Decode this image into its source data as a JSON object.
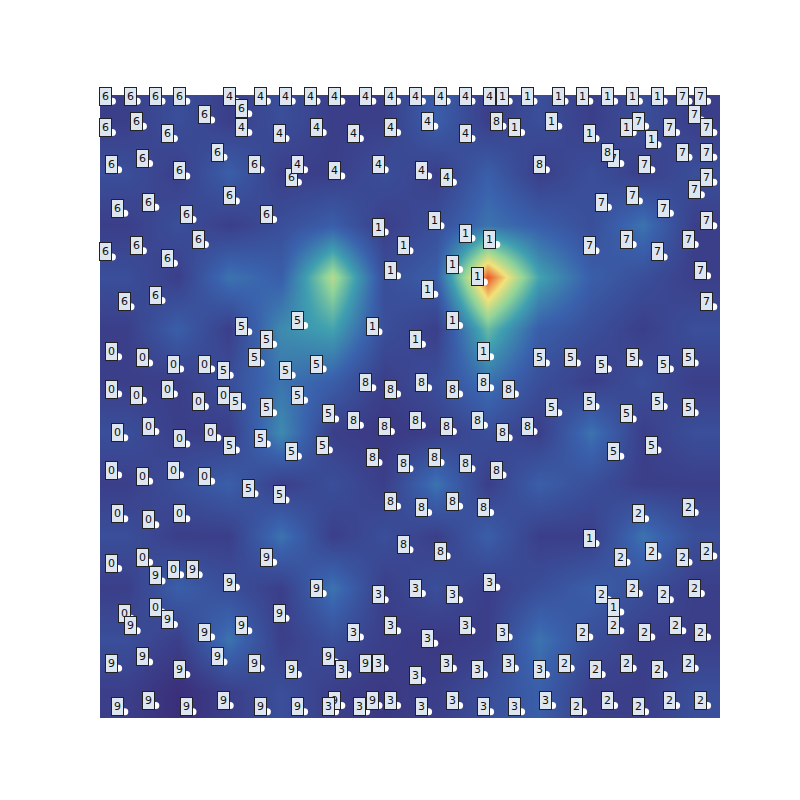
{
  "chart_data": {
    "type": "scatter",
    "tick_labels": false,
    "grid": false,
    "xlim": [
      0,
      100
    ],
    "ylim": [
      0,
      100
    ],
    "heatmap": {
      "z": [
        [
          0.3,
          0.25,
          0.3,
          0.35,
          0.3,
          0.28,
          0.3,
          0.35,
          0.4,
          0.3,
          0.3,
          0.35
        ],
        [
          0.35,
          0.3,
          0.45,
          0.3,
          0.35,
          0.3,
          0.28,
          0.3,
          0.45,
          0.35,
          0.3,
          0.3
        ],
        [
          0.3,
          0.4,
          0.35,
          0.3,
          0.45,
          0.3,
          0.35,
          0.3,
          0.35,
          0.4,
          0.35,
          0.3
        ],
        [
          0.35,
          0.3,
          0.3,
          0.45,
          0.3,
          0.35,
          0.3,
          0.4,
          0.3,
          0.3,
          0.45,
          0.35
        ],
        [
          0.3,
          0.35,
          0.4,
          0.3,
          0.35,
          0.3,
          0.45,
          0.3,
          0.4,
          0.35,
          0.3,
          0.3
        ],
        [
          0.35,
          0.3,
          0.3,
          0.5,
          0.3,
          0.28,
          0.3,
          0.35,
          0.3,
          0.45,
          0.3,
          0.35
        ],
        [
          0.3,
          0.3,
          0.35,
          0.45,
          0.4,
          0.3,
          0.35,
          0.45,
          0.35,
          0.3,
          0.35,
          0.3
        ],
        [
          0.3,
          0.4,
          0.3,
          0.5,
          0.55,
          0.35,
          0.3,
          0.6,
          0.4,
          0.35,
          0.3,
          0.35
        ],
        [
          0.35,
          0.3,
          0.45,
          0.4,
          0.7,
          0.35,
          0.4,
          0.9,
          0.55,
          0.4,
          0.35,
          0.3
        ],
        [
          0.3,
          0.35,
          0.3,
          0.35,
          0.4,
          0.3,
          0.35,
          0.45,
          0.4,
          0.35,
          0.45,
          0.3
        ],
        [
          0.35,
          0.3,
          0.4,
          0.3,
          0.3,
          0.35,
          0.3,
          0.4,
          0.3,
          0.35,
          0.3,
          0.35
        ],
        [
          0.3,
          0.35,
          0.3,
          0.35,
          0.3,
          0.3,
          0.4,
          0.3,
          0.35,
          0.3,
          0.35,
          0.3
        ]
      ]
    },
    "points": [
      {
        "label": "6",
        "x": [
          2,
          6,
          10,
          14,
          2,
          7,
          12,
          18,
          24,
          3,
          8,
          14,
          20,
          26,
          32,
          4,
          9,
          15,
          22,
          28,
          2,
          7,
          12,
          17,
          5,
          10
        ],
        "y": [
          99,
          99,
          99,
          99,
          94,
          95,
          93,
          96,
          97,
          88,
          89,
          87,
          90,
          88,
          86,
          81,
          82,
          80,
          83,
          80,
          74,
          75,
          73,
          76,
          66,
          67
        ]
      },
      {
        "label": "4",
        "x": [
          22,
          27,
          31,
          35,
          39,
          44,
          48,
          52,
          56,
          60,
          64,
          24,
          30,
          36,
          42,
          48,
          54,
          60,
          33,
          39,
          46,
          53,
          57
        ],
        "y": [
          99,
          99,
          99,
          99,
          99,
          99,
          99,
          99,
          99,
          99,
          99,
          94,
          93,
          94,
          93,
          94,
          95,
          93,
          88,
          87,
          88,
          87,
          86
        ]
      },
      {
        "label": "1",
        "x": [
          66,
          70,
          75,
          79,
          83,
          87,
          91,
          68,
          74,
          80,
          86,
          90,
          46,
          50,
          55,
          60,
          64,
          48,
          54,
          58,
          62,
          45,
          52,
          58,
          63,
          80,
          84
        ],
        "y": [
          99,
          99,
          99,
          99,
          99,
          99,
          99,
          94,
          95,
          93,
          94,
          92,
          78,
          75,
          79,
          77,
          76,
          71,
          68,
          72,
          70,
          62,
          60,
          63,
          58,
          28,
          17
        ]
      },
      {
        "label": "7",
        "x": [
          95,
          98,
          99,
          88,
          93,
          97,
          99,
          84,
          89,
          95,
          99,
          82,
          87,
          92,
          97,
          99,
          80,
          86,
          91,
          96,
          98,
          99
        ],
        "y": [
          99,
          99,
          94,
          95,
          94,
          96,
          90,
          89,
          88,
          90,
          86,
          82,
          83,
          81,
          84,
          79,
          75,
          76,
          74,
          76,
          71,
          66
        ]
      },
      {
        "label": "8",
        "x": [
          65,
          72,
          83,
          44,
          48,
          53,
          58,
          63,
          67,
          42,
          47,
          52,
          57,
          62,
          66,
          70,
          45,
          50,
          55,
          60,
          65,
          48,
          53,
          58,
          63,
          50,
          56
        ],
        "y": [
          95,
          88,
          90,
          53,
          52,
          53,
          52,
          53,
          52,
          47,
          46,
          47,
          46,
          47,
          45,
          46,
          41,
          40,
          41,
          40,
          39,
          34,
          33,
          34,
          33,
          27,
          26
        ]
      },
      {
        "label": "5",
        "x": [
          24,
          28,
          33,
          21,
          26,
          31,
          36,
          23,
          28,
          33,
          38,
          22,
          27,
          32,
          37,
          25,
          30,
          72,
          77,
          82,
          87,
          92,
          96,
          74,
          80,
          86,
          91,
          96,
          84,
          90
        ],
        "y": [
          62,
          60,
          63,
          55,
          57,
          55,
          56,
          50,
          49,
          51,
          48,
          43,
          44,
          42,
          43,
          36,
          35,
          57,
          57,
          56,
          57,
          56,
          57,
          49,
          50,
          48,
          50,
          49,
          42,
          43
        ]
      },
      {
        "label": "0",
        "x": [
          3,
          8,
          13,
          18,
          3,
          7,
          12,
          17,
          21,
          4,
          9,
          14,
          19,
          3,
          8,
          13,
          18,
          4,
          9,
          14,
          3,
          8,
          13,
          5,
          10
        ],
        "y": [
          58,
          57,
          56,
          56,
          52,
          51,
          52,
          50,
          51,
          45,
          46,
          44,
          45,
          39,
          38,
          39,
          38,
          32,
          31,
          32,
          24,
          25,
          23,
          16,
          17
        ]
      },
      {
        "label": "9",
        "x": [
          4,
          9,
          15,
          21,
          27,
          33,
          39,
          45,
          3,
          8,
          14,
          20,
          26,
          32,
          38,
          44,
          6,
          12,
          18,
          24,
          30,
          36,
          10,
          16,
          22,
          28
        ],
        "y": [
          1,
          2,
          1,
          2,
          1,
          1,
          2,
          2,
          8,
          9,
          7,
          9,
          8,
          7,
          9,
          8,
          14,
          15,
          13,
          14,
          16,
          20,
          22,
          23,
          21,
          25
        ]
      },
      {
        "label": "3",
        "x": [
          38,
          43,
          48,
          53,
          58,
          63,
          68,
          73,
          40,
          46,
          52,
          57,
          62,
          67,
          72,
          42,
          48,
          54,
          60,
          66,
          46,
          52,
          58,
          64
        ],
        "y": [
          1,
          1,
          2,
          1,
          2,
          1,
          1,
          2,
          7,
          8,
          6,
          8,
          7,
          8,
          7,
          13,
          14,
          12,
          14,
          13,
          19,
          20,
          19,
          21
        ]
      },
      {
        "label": "2",
        "x": [
          78,
          83,
          88,
          93,
          98,
          76,
          81,
          86,
          91,
          96,
          79,
          84,
          89,
          94,
          98,
          82,
          87,
          92,
          97,
          85,
          90,
          95,
          99,
          88,
          96
        ],
        "y": [
          1,
          2,
          1,
          2,
          2,
          8,
          7,
          8,
          7,
          8,
          13,
          14,
          13,
          14,
          13,
          19,
          20,
          19,
          20,
          25,
          26,
          25,
          26,
          32,
          33
        ]
      }
    ]
  }
}
